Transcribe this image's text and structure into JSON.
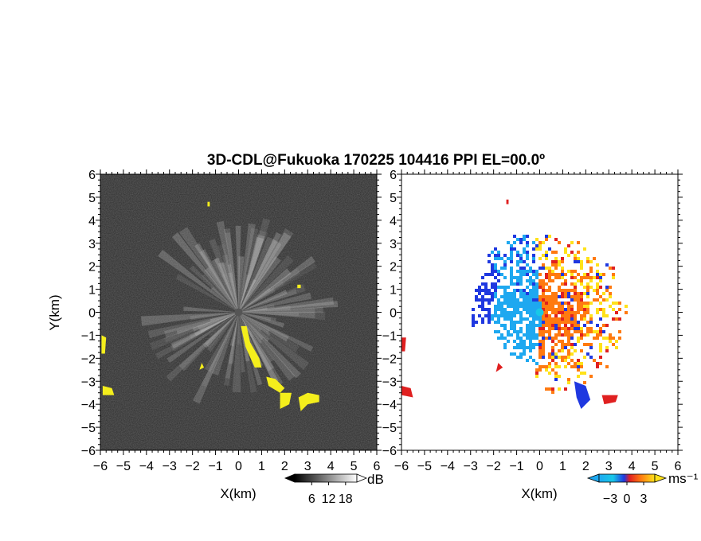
{
  "title": "3D-CDL@Fukuoka 170225 104416 PPI EL=00.0º",
  "colors": {
    "snr_background": "#2a2a2a",
    "snr_rays": "#d8d8d8",
    "snr_overlay": "#f4ee1c",
    "velocity_negative_far": "#1f38e0",
    "velocity_negative_near": "#1ea8f0",
    "velocity_zero": "#18c8e8",
    "velocity_positive_near": "#ff7a10",
    "velocity_positive_far": "#ffe21a",
    "velocity_boundary": "#e02020"
  },
  "chart_data": [
    {
      "type": "heatmap",
      "panel": "left",
      "quantity": "SNR",
      "xlabel": "X(km)",
      "ylabel": "Y(km)",
      "xlim": [
        -6,
        6
      ],
      "ylim": [
        -6,
        6
      ],
      "xticks": [
        "−6",
        "−5",
        "−4",
        "−3",
        "−2",
        "−1",
        "0",
        "1",
        "2",
        "3",
        "4",
        "5",
        "6"
      ],
      "yticks": [
        "−6",
        "−5",
        "−4",
        "−3",
        "−2",
        "−1",
        "0",
        "1",
        "2",
        "3",
        "4",
        "5",
        "6"
      ],
      "colorbar": {
        "unit": "dB",
        "ticks": [
          "6",
          "12",
          "18"
        ],
        "values": [
          6,
          12,
          18
        ],
        "colormap": "grayscale"
      },
      "grid": false
    },
    {
      "type": "heatmap",
      "panel": "right",
      "quantity": "Doppler velocity",
      "xlabel": "X(km)",
      "ylabel": "",
      "xlim": [
        -6,
        6
      ],
      "ylim": [
        -6,
        6
      ],
      "xticks": [
        "−6",
        "−5",
        "−4",
        "−3",
        "−2",
        "−1",
        "0",
        "1",
        "2",
        "3",
        "4",
        "5",
        "6"
      ],
      "yticks": [
        "−6",
        "−5",
        "−4",
        "−3",
        "−2",
        "−1",
        "0",
        "1",
        "2",
        "3",
        "4",
        "5",
        "6"
      ],
      "colorbar": {
        "unit": "ms⁻¹",
        "ticks": [
          "−3",
          "0",
          "3"
        ],
        "values": [
          -3,
          0,
          3
        ],
        "colormap": "blue-cyan-red-orange-yellow"
      },
      "grid": false
    }
  ]
}
